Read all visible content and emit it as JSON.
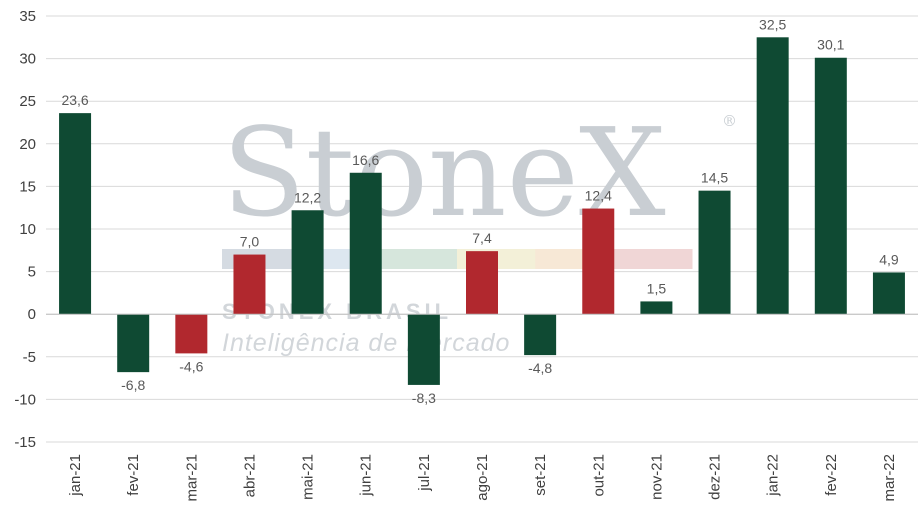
{
  "watermark": {
    "brand": "StoneX",
    "registered": "®",
    "subtitle": "STONEX BRASIL",
    "tagline": "Inteligência de Mercado",
    "stripe_colors": [
      "#d5dbe2",
      "#dde7f0",
      "#d6e6dc",
      "#f3f0d8",
      "#f7e8d6",
      "#f0d6d6"
    ]
  },
  "chart_data": {
    "type": "bar",
    "categories": [
      "jan-21",
      "fev-21",
      "mar-21",
      "abr-21",
      "mai-21",
      "jun-21",
      "jul-21",
      "ago-21",
      "set-21",
      "out-21",
      "nov-21",
      "dez-21",
      "jan-22",
      "fev-22",
      "mar-22"
    ],
    "values": [
      23.6,
      -6.8,
      -4.6,
      7.0,
      12.2,
      16.6,
      -8.3,
      7.4,
      -4.8,
      12.4,
      1.5,
      14.5,
      32.5,
      30.1,
      4.9
    ],
    "labels": [
      "23,6",
      "-6,8",
      "-4,6",
      "7,0",
      "12,2",
      "16,6",
      "-8,3",
      "7,4",
      "-4,8",
      "12,4",
      "1,5",
      "14,5",
      "32,5",
      "30,1",
      "4,9"
    ],
    "bar_colors": [
      "#0f4a33",
      "#0f4a33",
      "#b1282e",
      "#b1282e",
      "#0f4a33",
      "#0f4a33",
      "#0f4a33",
      "#b1282e",
      "#0f4a33",
      "#b1282e",
      "#0f4a33",
      "#0f4a33",
      "#0f4a33",
      "#0f4a33",
      "#0f4a33"
    ],
    "ylim": [
      -15,
      35
    ],
    "yticks": [
      35,
      30,
      25,
      20,
      15,
      10,
      5,
      0,
      -5,
      -10,
      -15
    ],
    "ytick_labels": [
      "35",
      "30",
      "25",
      "20",
      "15",
      "10",
      "5",
      "0",
      "-5",
      "-10",
      "-15"
    ],
    "grid": true,
    "title": "",
    "xlabel": "",
    "ylabel": ""
  }
}
